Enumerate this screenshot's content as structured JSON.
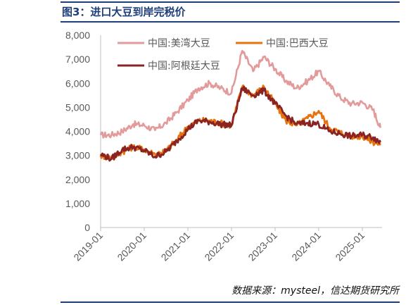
{
  "figure": {
    "title": "图3：进口大豆到岸完税价",
    "source": "数据来源：mysteel，信达期货研究所"
  },
  "colors": {
    "us": "#e39a9a",
    "brazil": "#e8720c",
    "argentina": "#8b2323",
    "axis": "#bfbfbf",
    "title": "#1f3f7a"
  },
  "chart_data": {
    "type": "line",
    "title": "",
    "xlabel": "",
    "ylabel": "",
    "ylim": [
      0,
      8000
    ],
    "yticks": [
      "0",
      "1,000",
      "2,000",
      "3,000",
      "4,000",
      "5,000",
      "6,000",
      "7,000",
      "8,000"
    ],
    "xticks": [
      "2019-01",
      "2020-01",
      "2021-01",
      "2022-01",
      "2023-01",
      "2024-01",
      "2025-01"
    ],
    "grid": false,
    "legend": "top",
    "x": [
      "2019-01",
      "2019-04",
      "2019-07",
      "2019-10",
      "2020-01",
      "2020-04",
      "2020-07",
      "2020-10",
      "2021-01",
      "2021-04",
      "2021-07",
      "2021-10",
      "2022-01",
      "2022-04",
      "2022-07",
      "2022-10",
      "2023-01",
      "2023-04",
      "2023-07",
      "2023-10",
      "2024-01",
      "2024-04",
      "2024-07",
      "2024-10",
      "2025-01",
      "2025-04",
      "2025-06"
    ],
    "series": [
      {
        "name": "中国:美湾大豆",
        "color_key": "us",
        "values": [
          3850,
          3850,
          4000,
          4300,
          4250,
          4050,
          4350,
          4800,
          5300,
          5800,
          6000,
          5800,
          5600,
          7350,
          6500,
          7100,
          6600,
          6100,
          5800,
          6100,
          6500,
          5900,
          5400,
          5150,
          5200,
          4900,
          4150
        ]
      },
      {
        "name": "中国:巴西大豆",
        "color_key": "brazil",
        "values": [
          3000,
          2900,
          3150,
          3350,
          3250,
          3050,
          3200,
          3650,
          4200,
          4450,
          4450,
          4350,
          4250,
          5850,
          5500,
          5850,
          5150,
          4450,
          4250,
          4550,
          4850,
          4150,
          3950,
          3800,
          3800,
          3550,
          3500
        ]
      },
      {
        "name": "中国:阿根廷大豆",
        "color_key": "argentina",
        "values": [
          3050,
          2850,
          3250,
          3350,
          3200,
          2950,
          3150,
          3600,
          4100,
          4450,
          4400,
          4300,
          4250,
          5800,
          5500,
          5700,
          5150,
          4650,
          4300,
          4350,
          4300,
          4000,
          3900,
          3800,
          3850,
          3750,
          3550
        ]
      }
    ]
  }
}
